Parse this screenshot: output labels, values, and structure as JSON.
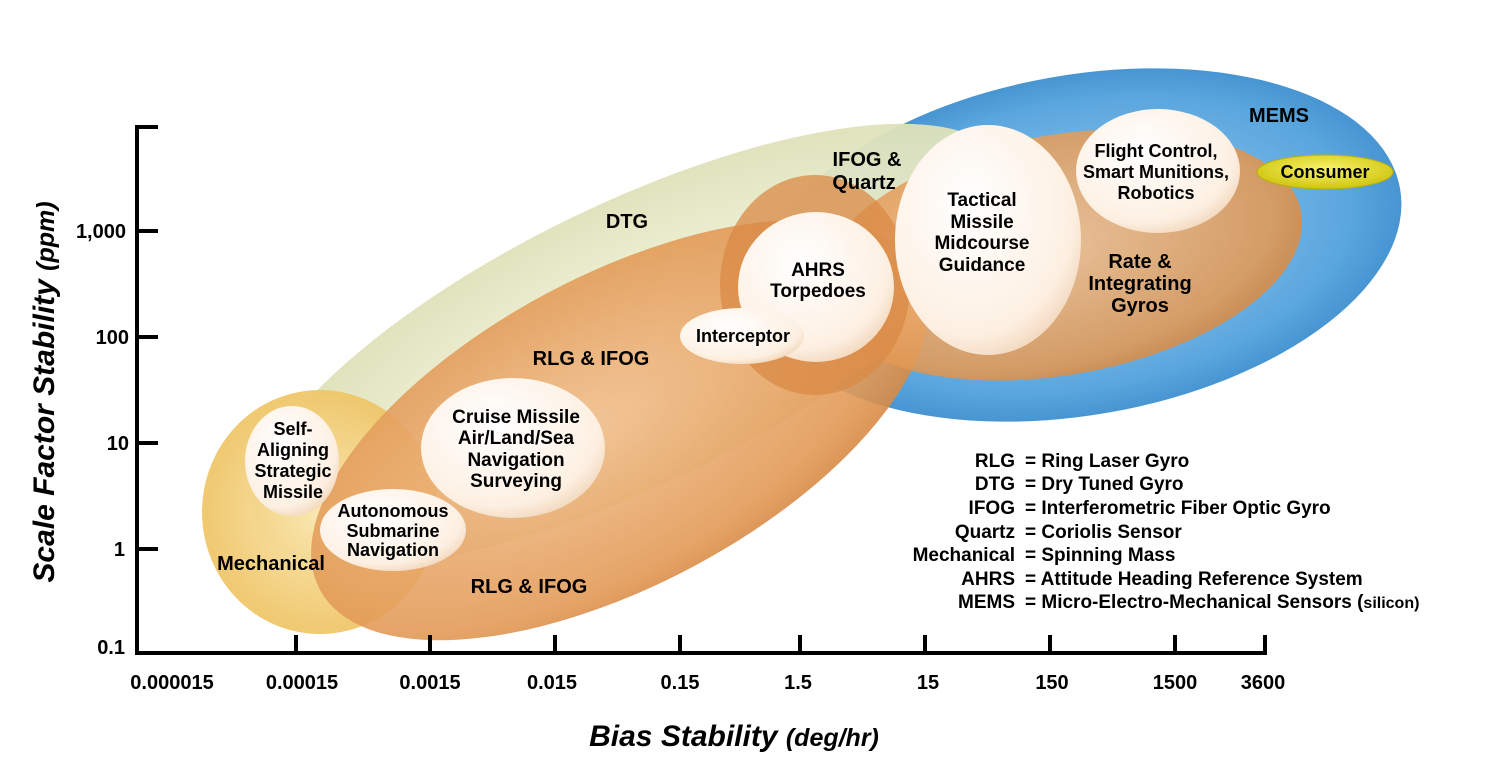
{
  "x_axis": {
    "title_main": "Bias Stability ",
    "title_unit": "(deg/hr)",
    "ticks": [
      "0.000015",
      "0.00015",
      "0.0015",
      "0.015",
      "0.15",
      "1.5",
      "15",
      "150",
      "1500",
      "3600"
    ]
  },
  "y_axis": {
    "title_main": "Scale Factor Stability ",
    "title_unit": "(ppm)",
    "ticks": [
      "0.1",
      "1",
      "10",
      "100",
      "1,000"
    ]
  },
  "regions": {
    "mems": "MEMS",
    "consumer": "Consumer",
    "dtg": "DTG",
    "ifog_quartz_1": "IFOG &",
    "ifog_quartz_2": "Quartz",
    "rlg_ifog_upper": "RLG & IFOG",
    "rlg_ifog_lower": "RLG & IFOG",
    "mechanical": "Mechanical",
    "rate_1": "Rate &",
    "rate_2": "Integrating",
    "rate_3": "Gyros"
  },
  "applications": {
    "flight_1": "Flight Control,",
    "flight_2": "Smart Munitions,",
    "flight_3": "Robotics",
    "tactical_1": "Tactical",
    "tactical_2": "Missile",
    "tactical_3": "Midcourse",
    "tactical_4": "Guidance",
    "ahrs_1": "AHRS",
    "ahrs_2": "Torpedoes",
    "interceptor": "Interceptor",
    "cruise_1": "Cruise Missile",
    "cruise_2": "Air/Land/Sea",
    "cruise_3": "Navigation",
    "cruise_4": "Surveying",
    "self_1": "Self-",
    "self_2": "Aligning",
    "self_3": "Strategic",
    "self_4": "Missile",
    "auto_1": "Autonomous",
    "auto_2": "Submarine",
    "auto_3": "Navigation"
  },
  "legend": [
    {
      "abbr": "RLG",
      "def": "= Ring Laser Gyro",
      "suffix": ""
    },
    {
      "abbr": "DTG",
      "def": "= Dry Tuned Gyro",
      "suffix": ""
    },
    {
      "abbr": "IFOG",
      "def": "= Interferometric Fiber Optic Gyro",
      "suffix": ""
    },
    {
      "abbr": "Quartz",
      "def": "= Coriolis Sensor",
      "suffix": ""
    },
    {
      "abbr": "Mechanical",
      "def": "= Spinning Mass",
      "suffix": ""
    },
    {
      "abbr": "AHRS",
      "def": "= Attitude Heading Reference System",
      "suffix": ""
    },
    {
      "abbr": "MEMS",
      "def": "= Micro-Electro-Mechanical Sensors (",
      "suffix": "silicon)"
    }
  ],
  "colors": {
    "mems_blue": "#4a9ad6",
    "dtg_cream": "#e6e8c8",
    "rlg_orange": "#e39a55",
    "mechanical_yellow": "#f3cf78",
    "consumer_yellow": "#e8e020",
    "app_bubble": "#fdf1e4"
  }
}
